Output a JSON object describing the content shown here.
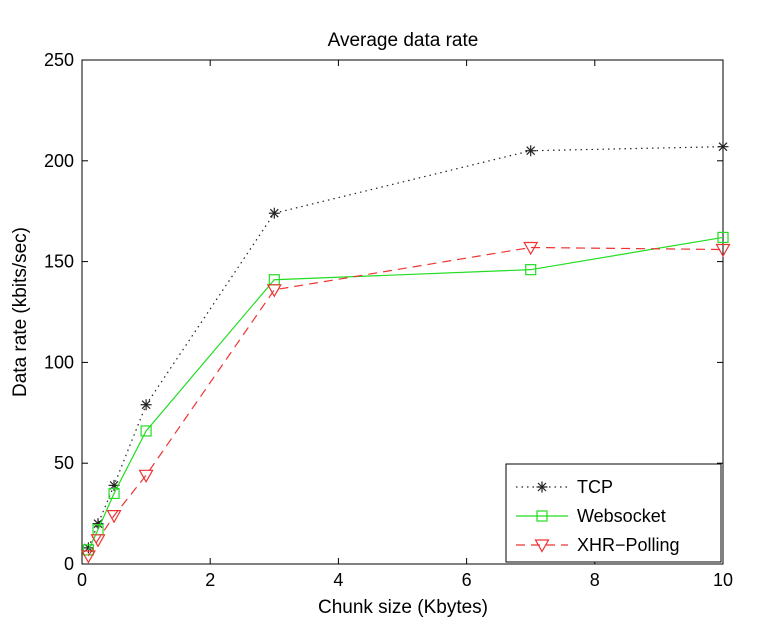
{
  "chart_data": {
    "type": "line",
    "title": "Average data rate",
    "xlabel": "Chunk size (Kbytes)",
    "ylabel": "Data rate (kbits/sec)",
    "xlim": [
      0,
      10
    ],
    "ylim": [
      0,
      250
    ],
    "xticks": [
      0,
      2,
      4,
      6,
      8,
      10
    ],
    "yticks": [
      0,
      50,
      100,
      150,
      200,
      250
    ],
    "grid": false,
    "legend_position": "bottom-right",
    "series": [
      {
        "name": "TCP",
        "color": "#222222",
        "line_style": "dotted",
        "marker": "asterisk",
        "x": [
          0.1,
          0.25,
          0.5,
          1,
          3,
          7,
          10
        ],
        "y": [
          8,
          20,
          39,
          79,
          174,
          205,
          207
        ]
      },
      {
        "name": "Websocket",
        "color": "#22dd22",
        "line_style": "solid",
        "marker": "square",
        "x": [
          0.1,
          0.25,
          0.5,
          1,
          3,
          7,
          10
        ],
        "y": [
          7,
          17,
          35,
          66,
          141,
          146,
          162
        ]
      },
      {
        "name": "XHR−Polling",
        "color": "#ee3333",
        "line_style": "dashed",
        "marker": "triangle-down",
        "x": [
          0.1,
          0.25,
          0.5,
          1,
          3,
          7,
          10
        ],
        "y": [
          4,
          12,
          24,
          44,
          136,
          157,
          156
        ]
      }
    ]
  }
}
